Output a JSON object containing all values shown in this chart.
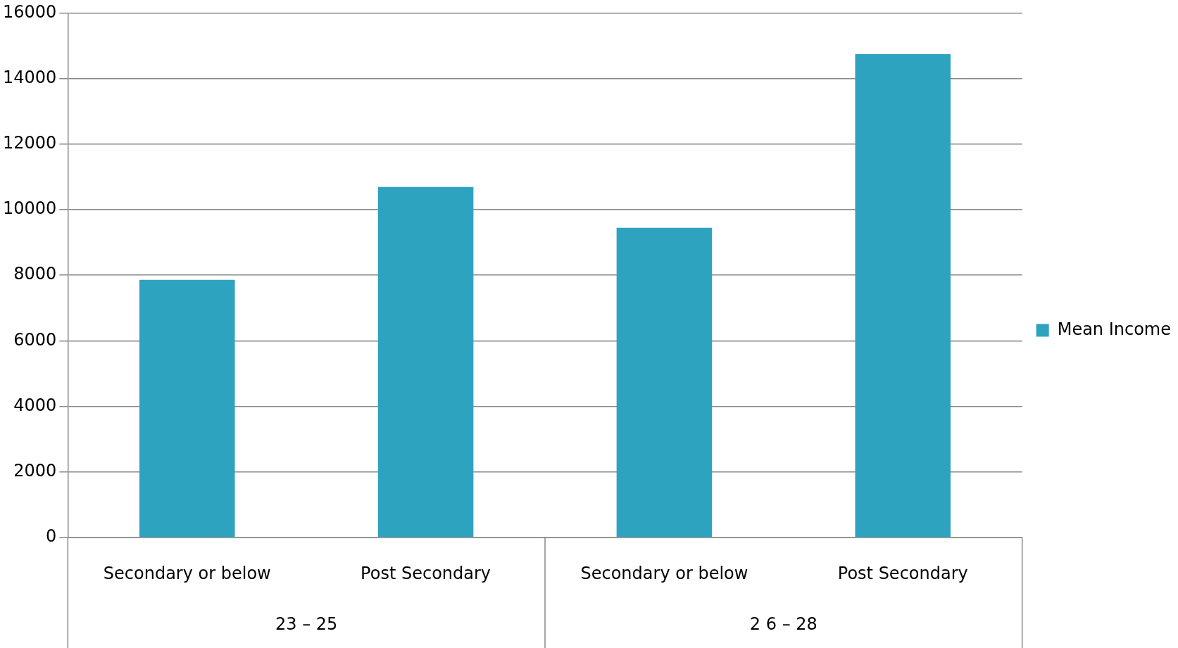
{
  "chart_data": {
    "type": "bar",
    "categories": [
      "Secondary or below",
      "Post Secondary",
      "Secondary or below",
      "Post Secondary"
    ],
    "series": [
      {
        "name": "Mean Income",
        "color": "#2ea3bf",
        "values": [
          7860,
          10690,
          9450,
          14740
        ]
      }
    ],
    "ylim": [
      0,
      16000
    ],
    "yticks": [
      0,
      2000,
      4000,
      6000,
      8000,
      10000,
      12000,
      14000,
      16000
    ],
    "grid": true,
    "legend": "right",
    "annotations": [
      "23 – 25",
      "2 6 – 28"
    ]
  }
}
